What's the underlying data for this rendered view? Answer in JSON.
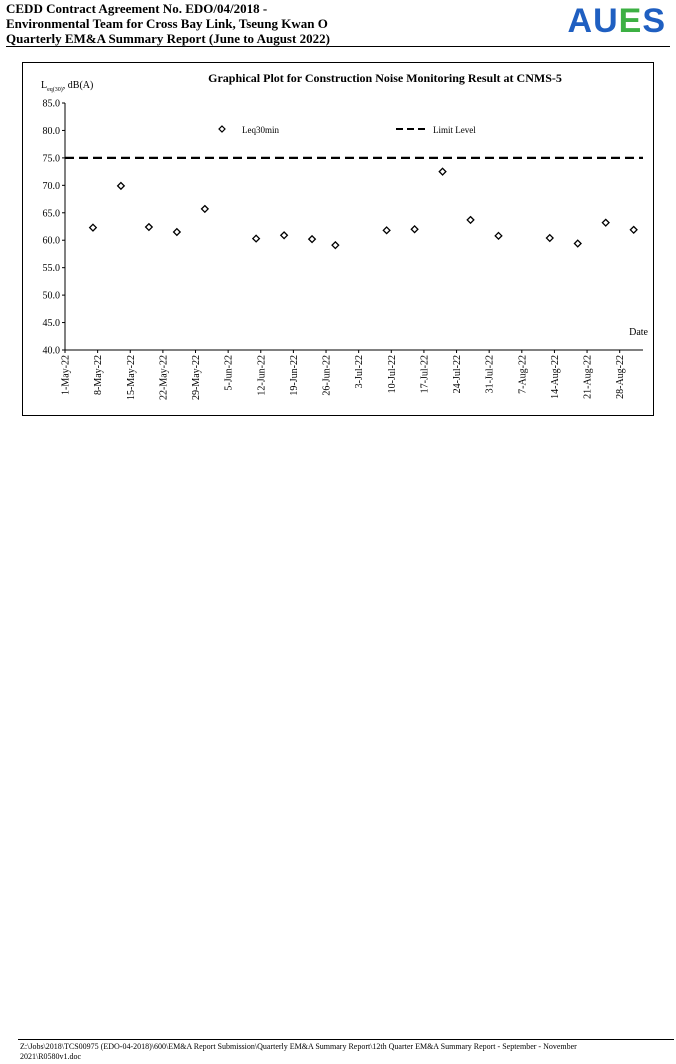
{
  "header": {
    "line1": "CEDD Contract Agreement No. EDO/04/2018 -",
    "line2": "Environmental Team for Cross Bay Link, Tseung Kwan O",
    "line3": "Quarterly EM&A Summary Report (June to August 2022)",
    "logo": {
      "letters": [
        "A",
        "U",
        "E",
        "S"
      ],
      "colors": [
        "#1f5fc1",
        "#1f5fc1",
        "#3cb043",
        "#1f5fc1"
      ]
    }
  },
  "chart_data": {
    "type": "scatter",
    "title": "Graphical Plot for Construction Noise Monitoring Result at CNMS-5",
    "ylabel_main": "L",
    "ylabel_sub": "eq(30)",
    "ylabel_rest": ", dB(A)",
    "xlabel": "Date",
    "ylim": [
      40.0,
      85.0
    ],
    "yticks": [
      "40.0",
      "45.0",
      "50.0",
      "55.0",
      "60.0",
      "65.0",
      "70.0",
      "75.0",
      "80.0",
      "85.0"
    ],
    "x_range": [
      "2022-05-01",
      "2022-09-02"
    ],
    "xticks": [
      "1-May-22",
      "8-May-22",
      "15-May-22",
      "22-May-22",
      "29-May-22",
      "5-Jun-22",
      "12-Jun-22",
      "19-Jun-22",
      "26-Jun-22",
      "3-Jul-22",
      "10-Jul-22",
      "17-Jul-22",
      "24-Jul-22",
      "31-Jul-22",
      "7-Aug-22",
      "14-Aug-22",
      "21-Aug-22",
      "28-Aug-22"
    ],
    "grid": false,
    "legend": {
      "position": "top",
      "leq_label": "Leq30min",
      "limit_label": "Limit Level"
    },
    "limit_level": 75.0,
    "series": [
      {
        "name": "Leq30min",
        "marker": "diamond",
        "points": [
          {
            "date": "2022-05-07",
            "value": 62.3
          },
          {
            "date": "2022-05-13",
            "value": 69.9
          },
          {
            "date": "2022-05-19",
            "value": 62.4
          },
          {
            "date": "2022-05-25",
            "value": 61.5
          },
          {
            "date": "2022-05-31",
            "value": 65.7
          },
          {
            "date": "2022-06-11",
            "value": 60.3
          },
          {
            "date": "2022-06-17",
            "value": 60.9
          },
          {
            "date": "2022-06-23",
            "value": 60.2
          },
          {
            "date": "2022-06-28",
            "value": 59.1
          },
          {
            "date": "2022-07-09",
            "value": 61.8
          },
          {
            "date": "2022-07-15",
            "value": 62.0
          },
          {
            "date": "2022-07-21",
            "value": 72.5
          },
          {
            "date": "2022-07-27",
            "value": 63.7
          },
          {
            "date": "2022-08-02",
            "value": 60.8
          },
          {
            "date": "2022-08-13",
            "value": 60.4
          },
          {
            "date": "2022-08-19",
            "value": 59.4
          },
          {
            "date": "2022-08-25",
            "value": 63.2
          },
          {
            "date": "2022-08-31",
            "value": 61.9
          }
        ]
      }
    ]
  },
  "footer": {
    "line1": "Z:\\Jobs\\2018\\TCS00975 (EDO-04-2018)\\600\\EM&A Report Submission\\Quarterly EM&A Summary Report\\12th Quarter EM&A Summary Report - September - November",
    "line2": "2021\\R0580v1.doc"
  }
}
